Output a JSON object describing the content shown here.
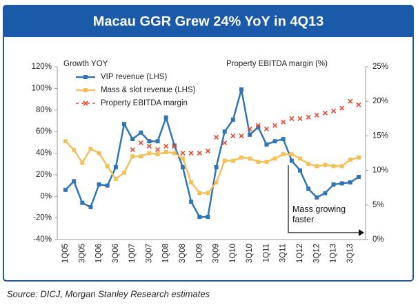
{
  "chart_data": {
    "type": "line",
    "title": "Macau GGR Grew 24% YoY in 4Q13",
    "y_label": "Growth YOY",
    "y2_label": "Property EBITDA margin (%)",
    "source": "Source: DICJ, Morgan Stanley Research estimates",
    "annotation": "Mass growing faster",
    "categories": [
      "1Q05",
      null,
      "3Q05",
      null,
      "1Q06",
      null,
      "3Q06",
      null,
      "1Q07",
      null,
      "3Q07",
      null,
      "1Q08",
      null,
      "3Q08",
      null,
      "1Q09",
      null,
      "3Q09",
      null,
      "1Q10",
      null,
      "3Q10",
      null,
      "1Q11",
      null,
      "3Q11",
      null,
      "1Q12",
      null,
      "3Q12",
      null,
      "1Q13",
      null,
      "3Q13",
      null
    ],
    "series": [
      {
        "name": "VIP revenue (LHS)",
        "color": "#2f75b5",
        "marker": "square",
        "line": true,
        "values": [
          6,
          14,
          -6,
          -10,
          11,
          10,
          27,
          67,
          53,
          59,
          51,
          51,
          73,
          47,
          27,
          -5,
          -19,
          -19,
          27,
          60,
          71,
          99,
          57,
          64,
          48,
          51,
          53,
          33,
          24,
          7,
          -1,
          3,
          11,
          12,
          13,
          18
        ]
      },
      {
        "name": "Mass & slot revenue (LHS)",
        "color": "#f3c15b",
        "marker": "square",
        "line": true,
        "values": [
          51,
          43,
          31,
          44,
          40,
          28,
          16,
          22,
          37,
          37,
          40,
          39,
          41,
          40,
          35,
          13,
          3,
          3,
          13,
          33,
          33,
          36,
          35,
          32,
          32,
          35,
          39,
          39,
          35,
          30,
          28,
          29,
          28,
          28,
          34,
          36
        ]
      },
      {
        "name": "Property EBITDA margin",
        "color": "#e5492e",
        "marker": "x",
        "line": false,
        "axis": "y2",
        "values": [
          null,
          null,
          null,
          null,
          null,
          null,
          null,
          null,
          13,
          14,
          13.5,
          13,
          13.5,
          13.5,
          12.5,
          12.5,
          12.5,
          12.8,
          14.8,
          14,
          15,
          15,
          16,
          16.5,
          16,
          16.5,
          17,
          17.5,
          17.5,
          17.7,
          18,
          18.3,
          18.6,
          19,
          20,
          19.5
        ]
      }
    ],
    "ylim": [
      -40,
      120
    ],
    "yticks": [
      {
        "value": -40,
        "label": "-40%"
      },
      {
        "value": -20,
        "label": "-20%"
      },
      {
        "value": 0,
        "label": "0%"
      },
      {
        "value": 20,
        "label": "20%"
      },
      {
        "value": 40,
        "label": "40%"
      },
      {
        "value": 60,
        "label": "60%"
      },
      {
        "value": 80,
        "label": "80%"
      },
      {
        "value": 100,
        "label": "100%"
      },
      {
        "value": 120,
        "label": "120%"
      }
    ],
    "y2lim": [
      0,
      25
    ],
    "y2ticks": [
      {
        "value": 0,
        "label": "0%"
      },
      {
        "value": 5,
        "label": "5%"
      },
      {
        "value": 10,
        "label": "10%"
      },
      {
        "value": 15,
        "label": "15%"
      },
      {
        "value": 20,
        "label": "20%"
      },
      {
        "value": 25,
        "label": "25%"
      }
    ]
  }
}
